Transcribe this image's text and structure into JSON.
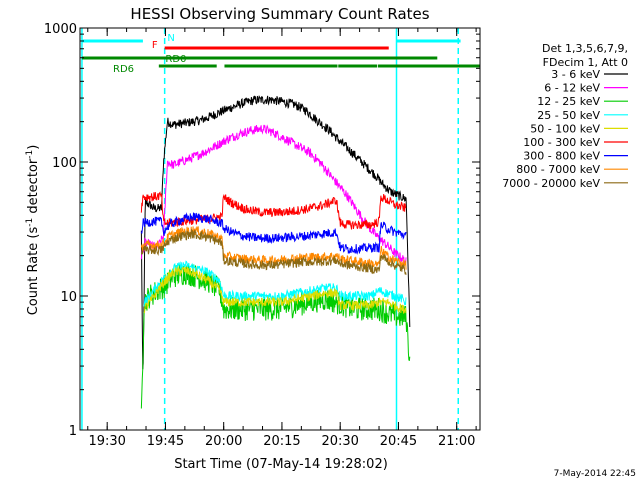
{
  "chart_data": {
    "type": "line",
    "title": "HESSI Observing Summary Count Rates",
    "xlabel": "Start Time (07-May-14 19:28:02)",
    "ylabel_main": "Count Rate (s",
    "ylabel_sup1": "-1",
    "ylabel_mid": " detector",
    "ylabel_sup2": "-1",
    "ylabel_end": ")",
    "yscale": "log",
    "xlim_minutes_after_1928": [
      -5,
      98
    ],
    "ylim": [
      1,
      1000
    ],
    "x_ticks": [
      {
        "label": "19:30",
        "minute": 2
      },
      {
        "label": "19:45",
        "minute": 17
      },
      {
        "label": "20:00",
        "minute": 32
      },
      {
        "label": "20:15",
        "minute": 47
      },
      {
        "label": "20:30",
        "minute": 62
      },
      {
        "label": "20:45",
        "minute": 77
      },
      {
        "label": "21:00",
        "minute": 92
      }
    ],
    "y_ticks": [
      {
        "label": "1",
        "value": 1
      },
      {
        "label": "10",
        "value": 10
      },
      {
        "label": "100",
        "value": 100
      },
      {
        "label": "1000",
        "value": 1000
      }
    ],
    "legend_header": [
      "Det 1,3,5,6,7,9,",
      "FDecim 1, Att 0"
    ],
    "legend_placement": "right",
    "series": [
      {
        "name": "3 - 6 keV",
        "color": "#000000",
        "points": [
          [
            10.8,
            30
          ],
          [
            11.2,
            2
          ],
          [
            11.8,
            50
          ],
          [
            13,
            48
          ],
          [
            14,
            45
          ],
          [
            16,
            45
          ],
          [
            16.5,
            100
          ],
          [
            17.5,
            200
          ],
          [
            19,
            190
          ],
          [
            22,
            195
          ],
          [
            26,
            205
          ],
          [
            28,
            215
          ],
          [
            31,
            235
          ],
          [
            34,
            255
          ],
          [
            37,
            275
          ],
          [
            40,
            290
          ],
          [
            44,
            292
          ],
          [
            47,
            282
          ],
          [
            50,
            270
          ],
          [
            53,
            245
          ],
          [
            56,
            205
          ],
          [
            59,
            175
          ],
          [
            62,
            142
          ],
          [
            65,
            118
          ],
          [
            68,
            97
          ],
          [
            71,
            80
          ],
          [
            73,
            68
          ],
          [
            75,
            60
          ],
          [
            77,
            56
          ],
          [
            79,
            53
          ],
          [
            80,
            5
          ]
        ]
      },
      {
        "name": "6 - 12 keV",
        "color": "#ff00ff",
        "points": [
          [
            10.8,
            20
          ],
          [
            11.8,
            25
          ],
          [
            13,
            24
          ],
          [
            15,
            23
          ],
          [
            16.5,
            28
          ],
          [
            17.5,
            100
          ],
          [
            19,
            95
          ],
          [
            21,
            100
          ],
          [
            24,
            108
          ],
          [
            27,
            118
          ],
          [
            30,
            132
          ],
          [
            33,
            148
          ],
          [
            36,
            162
          ],
          [
            39,
            172
          ],
          [
            42,
            178
          ],
          [
            45,
            165
          ],
          [
            48,
            148
          ],
          [
            51,
            132
          ],
          [
            54,
            118
          ],
          [
            57,
            98
          ],
          [
            60,
            76
          ],
          [
            62,
            65
          ],
          [
            64,
            55
          ],
          [
            66,
            45
          ],
          [
            68,
            37
          ],
          [
            70,
            31
          ],
          [
            72,
            27
          ],
          [
            74,
            24
          ],
          [
            76,
            21
          ],
          [
            78,
            19
          ],
          [
            79,
            18
          ]
        ]
      },
      {
        "name": "12 - 25 keV",
        "color": "#00cc00",
        "points": [
          [
            10.8,
            1.2
          ],
          [
            11.5,
            9
          ],
          [
            13,
            10
          ],
          [
            15,
            11
          ],
          [
            17,
            12
          ],
          [
            19,
            14
          ],
          [
            22,
            15
          ],
          [
            25,
            14
          ],
          [
            28,
            13
          ],
          [
            31,
            11
          ],
          [
            32,
            8
          ],
          [
            35,
            8
          ],
          [
            38,
            8
          ],
          [
            42,
            8
          ],
          [
            46,
            8
          ],
          [
            50,
            8.5
          ],
          [
            54,
            9
          ],
          [
            58,
            9.5
          ],
          [
            61,
            9
          ],
          [
            63,
            8.5
          ],
          [
            66,
            8
          ],
          [
            70,
            8
          ],
          [
            72,
            8
          ],
          [
            74,
            7.5
          ],
          [
            77,
            7
          ],
          [
            79,
            7
          ],
          [
            80,
            3
          ]
        ]
      },
      {
        "name": "25 - 50 keV",
        "color": "#00ffff",
        "points": [
          [
            11.5,
            9
          ],
          [
            13,
            10
          ],
          [
            15,
            12
          ],
          [
            17,
            14
          ],
          [
            19,
            16
          ],
          [
            22,
            17
          ],
          [
            25,
            16
          ],
          [
            28,
            15
          ],
          [
            31,
            13
          ],
          [
            32,
            10
          ],
          [
            35,
            10
          ],
          [
            39,
            10
          ],
          [
            43,
            10
          ],
          [
            47,
            10
          ],
          [
            51,
            10.5
          ],
          [
            55,
            11
          ],
          [
            58,
            11.5
          ],
          [
            61,
            11.5
          ],
          [
            62,
            10
          ],
          [
            64,
            10
          ],
          [
            67,
            10
          ],
          [
            70,
            10
          ],
          [
            72,
            11
          ],
          [
            74,
            10.5
          ],
          [
            76,
            10
          ],
          [
            78,
            9.5
          ],
          [
            79,
            9
          ]
        ]
      },
      {
        "name": "50 - 100 keV",
        "color": "#dddd00",
        "points": [
          [
            11.5,
            8
          ],
          [
            13,
            9
          ],
          [
            15,
            11
          ],
          [
            17,
            13
          ],
          [
            19,
            15
          ],
          [
            22,
            15.5
          ],
          [
            25,
            14.5
          ],
          [
            28,
            13
          ],
          [
            31,
            11
          ],
          [
            32,
            9
          ],
          [
            35,
            9
          ],
          [
            39,
            9
          ],
          [
            43,
            9
          ],
          [
            47,
            9
          ],
          [
            51,
            9.5
          ],
          [
            55,
            10
          ],
          [
            58,
            10.5
          ],
          [
            61,
            10.5
          ],
          [
            62,
            8.5
          ],
          [
            64,
            8.5
          ],
          [
            67,
            8.5
          ],
          [
            70,
            8.5
          ],
          [
            72,
            9
          ],
          [
            74,
            9
          ],
          [
            76,
            8.5
          ],
          [
            78,
            8
          ],
          [
            79,
            8
          ]
        ]
      },
      {
        "name": "100 - 300 keV",
        "color": "#ff0000",
        "points": [
          [
            10.8,
            45
          ],
          [
            11.2,
            55
          ],
          [
            14,
            55
          ],
          [
            16,
            56
          ],
          [
            16.5,
            35
          ],
          [
            18,
            35
          ],
          [
            21,
            36
          ],
          [
            25,
            37
          ],
          [
            29,
            38
          ],
          [
            31.5,
            39
          ],
          [
            32,
            55
          ],
          [
            33,
            52
          ],
          [
            35,
            48
          ],
          [
            38,
            44
          ],
          [
            42,
            42
          ],
          [
            46,
            42
          ],
          [
            50,
            43
          ],
          [
            54,
            45
          ],
          [
            58,
            48
          ],
          [
            61,
            52
          ],
          [
            62,
            35
          ],
          [
            64,
            34
          ],
          [
            67,
            34
          ],
          [
            70,
            34
          ],
          [
            72,
            36
          ],
          [
            72.5,
            55
          ],
          [
            74,
            52
          ],
          [
            76,
            48
          ],
          [
            78,
            46
          ],
          [
            79,
            45
          ]
        ]
      },
      {
        "name": "300 - 800 keV",
        "color": "#0000ff",
        "points": [
          [
            10.8,
            30
          ],
          [
            11.2,
            35
          ],
          [
            14,
            36
          ],
          [
            16,
            36
          ],
          [
            16.5,
            30
          ],
          [
            18,
            34
          ],
          [
            21,
            37
          ],
          [
            24,
            39
          ],
          [
            27,
            38
          ],
          [
            30,
            36
          ],
          [
            31.5,
            35
          ],
          [
            32,
            32
          ],
          [
            34,
            30
          ],
          [
            37,
            28
          ],
          [
            41,
            27
          ],
          [
            45,
            27
          ],
          [
            49,
            27.5
          ],
          [
            53,
            28
          ],
          [
            57,
            29
          ],
          [
            61,
            30
          ],
          [
            62,
            23
          ],
          [
            64,
            22.5
          ],
          [
            67,
            22.5
          ],
          [
            70,
            23
          ],
          [
            72,
            23
          ],
          [
            72.5,
            34
          ],
          [
            74,
            32
          ],
          [
            76,
            30
          ],
          [
            78,
            29
          ],
          [
            79,
            28
          ]
        ]
      },
      {
        "name": "800 - 7000 keV",
        "color": "#ff8800",
        "points": [
          [
            10.8,
            22
          ],
          [
            11.2,
            24
          ],
          [
            14,
            24
          ],
          [
            16,
            24
          ],
          [
            16.5,
            25
          ],
          [
            18,
            28
          ],
          [
            21,
            30
          ],
          [
            24,
            31
          ],
          [
            27,
            30
          ],
          [
            30,
            28
          ],
          [
            31.5,
            27
          ],
          [
            32,
            20
          ],
          [
            34,
            19.5
          ],
          [
            37,
            19
          ],
          [
            41,
            18.5
          ],
          [
            45,
            18.5
          ],
          [
            49,
            19
          ],
          [
            53,
            19.5
          ],
          [
            57,
            19.5
          ],
          [
            61,
            20
          ],
          [
            62,
            19
          ],
          [
            64,
            18.5
          ],
          [
            67,
            18
          ],
          [
            70,
            17.5
          ],
          [
            72,
            17
          ],
          [
            72.5,
            22
          ],
          [
            74,
            20
          ],
          [
            76,
            18.5
          ],
          [
            78,
            17.5
          ],
          [
            79,
            17
          ]
        ]
      },
      {
        "name": "7000 - 20000 keV",
        "color": "#8b6914",
        "points": [
          [
            10.8,
            20
          ],
          [
            11.2,
            22
          ],
          [
            14,
            22
          ],
          [
            16,
            22
          ],
          [
            16.5,
            23
          ],
          [
            18,
            26
          ],
          [
            21,
            28
          ],
          [
            24,
            29
          ],
          [
            27,
            28
          ],
          [
            30,
            26
          ],
          [
            31.5,
            25
          ],
          [
            32,
            18.5
          ],
          [
            34,
            18
          ],
          [
            37,
            17.5
          ],
          [
            41,
            17
          ],
          [
            45,
            17
          ],
          [
            49,
            17.5
          ],
          [
            53,
            18
          ],
          [
            57,
            18
          ],
          [
            61,
            18.5
          ],
          [
            62,
            17.5
          ],
          [
            64,
            17
          ],
          [
            67,
            16.5
          ],
          [
            70,
            16
          ],
          [
            72,
            15.5
          ],
          [
            72.5,
            20
          ],
          [
            74,
            18.5
          ],
          [
            76,
            17
          ],
          [
            78,
            16
          ],
          [
            79,
            15.5
          ]
        ]
      }
    ],
    "vertical_markers": [
      {
        "minute": -4.5,
        "color": "#00ffff",
        "style": "solid"
      },
      {
        "minute": 16.8,
        "color": "#00ffff",
        "style": "dashed"
      },
      {
        "minute": 76.5,
        "color": "#00ffff",
        "style": "solid"
      },
      {
        "minute": 92.4,
        "color": "#00ffff",
        "style": "dashed"
      }
    ],
    "flag_bars": [
      {
        "label": "N",
        "color": "#00ffff",
        "label_minute": 17.5,
        "segments": [
          [
            -4.5,
            11.2
          ],
          [
            16.8,
            16.8
          ],
          [
            76.5,
            93.0
          ]
        ],
        "level": 1
      },
      {
        "label": "F",
        "color": "#ff0000",
        "label_minute": 13.5,
        "segments": [
          [
            16.8,
            74.5
          ]
        ],
        "level": 2
      },
      {
        "label": "RD0",
        "color": "#008800",
        "label_minute": 17.0,
        "segments": [
          [
            -4.5,
            87.0
          ]
        ],
        "level": 3
      },
      {
        "label": "RD6",
        "color": "#008800",
        "label_minute": 3.5,
        "segments": [
          [
            15.3,
            30.2
          ],
          [
            32.2,
            61.3
          ],
          [
            61.5,
            71.5
          ],
          [
            71.7,
            98
          ]
        ],
        "level": 4
      }
    ]
  },
  "timestamp": "7-May-2014 22:45"
}
